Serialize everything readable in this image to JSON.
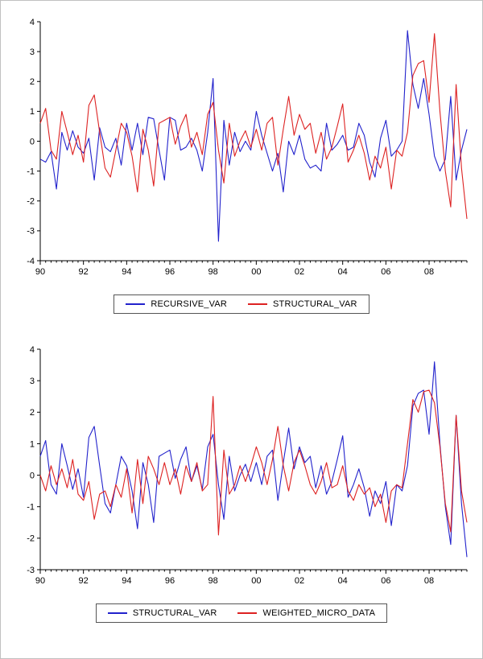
{
  "page": {
    "background": "#ffffff"
  },
  "chart_data": [
    {
      "type": "line",
      "title": "",
      "xlabel": "",
      "ylabel": "",
      "grid": false,
      "legend_position": "bottom-center",
      "ylim": [
        -4,
        4
      ],
      "yticks": [
        4,
        3,
        2,
        1,
        0,
        -1,
        -2,
        -3,
        -4
      ],
      "n_points": 80,
      "x_tick_indices": [
        0,
        8,
        16,
        24,
        32,
        40,
        48,
        56,
        64,
        72
      ],
      "x_tick_labels": [
        "90",
        "92",
        "94",
        "96",
        "98",
        "00",
        "02",
        "04",
        "06",
        "08"
      ],
      "series": [
        {
          "name": "RECURSIVE_VAR",
          "color": "#2222cc",
          "values": [
            -0.6,
            -0.7,
            -0.35,
            -1.6,
            0.3,
            -0.3,
            0.35,
            -0.2,
            -0.4,
            0.1,
            -1.3,
            0.45,
            -0.2,
            -0.35,
            0.1,
            -0.8,
            0.6,
            -0.3,
            0.6,
            -0.45,
            0.8,
            0.75,
            -0.3,
            -1.3,
            0.8,
            0.7,
            -0.3,
            -0.2,
            0.1,
            -0.3,
            -1.0,
            0.3,
            2.1,
            -3.35,
            0.7,
            -0.8,
            0.3,
            -0.35,
            0.0,
            -0.3,
            1.0,
            0.2,
            -0.4,
            -1.0,
            -0.4,
            -1.7,
            0.0,
            -0.45,
            0.2,
            -0.6,
            -0.9,
            -0.8,
            -1.0,
            0.6,
            -0.3,
            -0.1,
            0.2,
            -0.3,
            -0.2,
            0.6,
            0.2,
            -0.7,
            -1.2,
            0.1,
            0.7,
            -0.5,
            -0.3,
            0.0,
            3.7,
            1.9,
            1.1,
            2.1,
            0.9,
            -0.5,
            -1.0,
            -0.6,
            1.5,
            -1.3,
            -0.3,
            0.4
          ]
        },
        {
          "name": "STRUCTURAL_VAR",
          "color": "#dd2222",
          "values": [
            0.6,
            1.1,
            -0.3,
            -0.6,
            1.0,
            0.3,
            -0.45,
            0.2,
            -0.7,
            1.2,
            1.55,
            0.3,
            -0.9,
            -1.2,
            -0.3,
            0.6,
            0.3,
            -0.5,
            -1.7,
            0.4,
            -0.3,
            -1.5,
            0.6,
            0.7,
            0.8,
            -0.1,
            0.5,
            0.9,
            -0.2,
            0.3,
            -0.45,
            0.9,
            1.3,
            -0.3,
            -1.4,
            0.6,
            -0.5,
            0.0,
            0.35,
            -0.2,
            0.4,
            -0.3,
            0.6,
            0.8,
            -0.8,
            0.4,
            1.5,
            0.2,
            0.9,
            0.4,
            0.6,
            -0.4,
            0.3,
            -0.6,
            -0.2,
            0.5,
            1.25,
            -0.7,
            -0.3,
            0.2,
            -0.4,
            -1.3,
            -0.5,
            -0.9,
            -0.2,
            -1.6,
            -0.3,
            -0.5,
            0.3,
            2.2,
            2.6,
            2.7,
            1.3,
            3.6,
            1.0,
            -1.0,
            -2.2,
            1.9,
            -0.9,
            -2.6
          ]
        }
      ]
    },
    {
      "type": "line",
      "title": "",
      "xlabel": "",
      "ylabel": "",
      "grid": false,
      "legend_position": "bottom-center",
      "ylim": [
        -3,
        4
      ],
      "yticks": [
        4,
        3,
        2,
        1,
        0,
        -1,
        -2,
        -3
      ],
      "n_points": 80,
      "x_tick_indices": [
        0,
        8,
        16,
        24,
        32,
        40,
        48,
        56,
        64,
        72
      ],
      "x_tick_labels": [
        "90",
        "92",
        "94",
        "96",
        "98",
        "00",
        "02",
        "04",
        "06",
        "08"
      ],
      "series": [
        {
          "name": "STRUCTURAL_VAR",
          "color": "#2222cc",
          "values": [
            0.6,
            1.1,
            -0.3,
            -0.6,
            1.0,
            0.3,
            -0.45,
            0.2,
            -0.7,
            1.2,
            1.55,
            0.3,
            -0.9,
            -1.2,
            -0.3,
            0.6,
            0.3,
            -0.5,
            -1.7,
            0.4,
            -0.3,
            -1.5,
            0.6,
            0.7,
            0.8,
            -0.1,
            0.5,
            0.9,
            -0.2,
            0.3,
            -0.45,
            0.9,
            1.3,
            -0.3,
            -1.4,
            0.6,
            -0.5,
            0.0,
            0.35,
            -0.2,
            0.4,
            -0.3,
            0.6,
            0.8,
            -0.8,
            0.4,
            1.5,
            0.2,
            0.9,
            0.4,
            0.6,
            -0.4,
            0.3,
            -0.6,
            -0.2,
            0.5,
            1.25,
            -0.7,
            -0.3,
            0.2,
            -0.4,
            -1.3,
            -0.5,
            -0.9,
            -0.2,
            -1.6,
            -0.3,
            -0.5,
            0.3,
            2.2,
            2.6,
            2.7,
            1.3,
            3.6,
            1.0,
            -1.0,
            -2.2,
            1.9,
            -0.9,
            -2.6
          ]
        },
        {
          "name": "WEIGHTED_MICRO_DATA",
          "color": "#dd2222",
          "values": [
            0.0,
            -0.5,
            0.3,
            -0.3,
            0.2,
            -0.4,
            0.5,
            -0.6,
            -0.8,
            -0.2,
            -1.4,
            -0.6,
            -0.5,
            -1.0,
            -0.3,
            -0.7,
            0.2,
            -1.2,
            0.5,
            -0.9,
            0.6,
            0.2,
            -0.3,
            0.4,
            -0.3,
            0.2,
            -0.6,
            0.3,
            -0.2,
            0.4,
            -0.5,
            -0.3,
            2.5,
            -1.9,
            0.8,
            -0.6,
            -0.3,
            0.3,
            -0.2,
            0.3,
            0.9,
            0.4,
            -0.3,
            0.5,
            1.55,
            0.3,
            -0.5,
            0.4,
            0.8,
            0.3,
            -0.3,
            -0.6,
            -0.2,
            0.4,
            -0.4,
            -0.3,
            0.3,
            -0.5,
            -0.8,
            -0.3,
            -0.6,
            -0.4,
            -1.0,
            -0.6,
            -1.5,
            -0.5,
            -0.3,
            -0.4,
            1.0,
            2.4,
            2.0,
            2.65,
            2.7,
            2.3,
            0.9,
            -0.9,
            -1.8,
            1.9,
            -0.5,
            -1.5
          ]
        }
      ]
    }
  ]
}
